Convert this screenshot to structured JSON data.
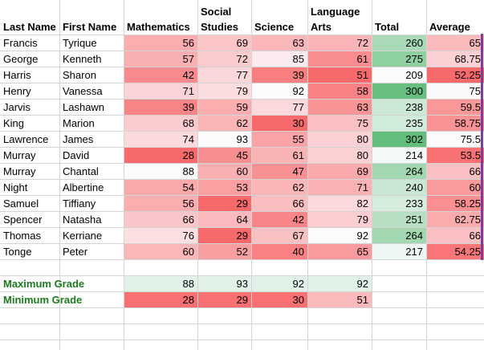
{
  "columns": [
    "Last Name",
    "First Name",
    "Mathematics",
    "Social Studies",
    "Science",
    "Language Arts",
    "Total",
    "Average"
  ],
  "rows": [
    {
      "last": "Francis",
      "first": "Tyrique",
      "math": "56",
      "social": "69",
      "science": "63",
      "lang": "72",
      "total": "260",
      "avg": "65"
    },
    {
      "last": "George",
      "first": "Kenneth",
      "math": "57",
      "social": "72",
      "science": "85",
      "lang": "61",
      "total": "275",
      "avg": "68.75"
    },
    {
      "last": "Harris",
      "first": "Sharon",
      "math": "42",
      "social": "77",
      "science": "39",
      "lang": "51",
      "total": "209",
      "avg": "52.25"
    },
    {
      "last": "Henry",
      "first": "Vanessa",
      "math": "71",
      "social": "79",
      "science": "92",
      "lang": "58",
      "total": "300",
      "avg": "75"
    },
    {
      "last": "Jarvis",
      "first": "Lashawn",
      "math": "39",
      "social": "59",
      "science": "77",
      "lang": "63",
      "total": "238",
      "avg": "59.5"
    },
    {
      "last": "King",
      "first": "Marion",
      "math": "68",
      "social": "62",
      "science": "30",
      "lang": "75",
      "total": "235",
      "avg": "58.75"
    },
    {
      "last": "Lawrence",
      "first": "James",
      "math": "74",
      "social": "93",
      "science": "55",
      "lang": "80",
      "total": "302",
      "avg": "75.5"
    },
    {
      "last": "Murray",
      "first": "David",
      "math": "28",
      "social": "45",
      "science": "61",
      "lang": "80",
      "total": "214",
      "avg": "53.5"
    },
    {
      "last": "Murray",
      "first": "Chantal",
      "math": "88",
      "social": "60",
      "science": "47",
      "lang": "69",
      "total": "264",
      "avg": "66"
    },
    {
      "last": "Night",
      "first": "Albertine",
      "math": "54",
      "social": "53",
      "science": "62",
      "lang": "71",
      "total": "240",
      "avg": "60"
    },
    {
      "last": "Samuel",
      "first": "Tiffiany",
      "math": "56",
      "social": "29",
      "science": "66",
      "lang": "82",
      "total": "233",
      "avg": "58.25"
    },
    {
      "last": "Spencer",
      "first": "Natasha",
      "math": "66",
      "social": "64",
      "science": "42",
      "lang": "79",
      "total": "251",
      "avg": "62.75"
    },
    {
      "last": "Thomas",
      "first": "Kerriane",
      "math": "76",
      "social": "29",
      "science": "67",
      "lang": "92",
      "total": "264",
      "avg": "66"
    },
    {
      "last": "Tonge",
      "first": "Peter",
      "math": "60",
      "social": "52",
      "science": "40",
      "lang": "65",
      "total": "217",
      "avg": "54.25"
    }
  ],
  "summary": [
    {
      "label": "Maximum Grade",
      "math": "88",
      "social": "93",
      "science": "92",
      "lang": "92"
    },
    {
      "label": "Minimum Grade",
      "math": "28",
      "social": "29",
      "science": "30",
      "lang": "51"
    }
  ],
  "colors": {
    "scale_red": "#f8696b",
    "scale_white": "#fcfcff",
    "scale_green": "#63be7b",
    "summary_text": "#1e7a1e",
    "selection_bar": "#7a3d9a"
  }
}
